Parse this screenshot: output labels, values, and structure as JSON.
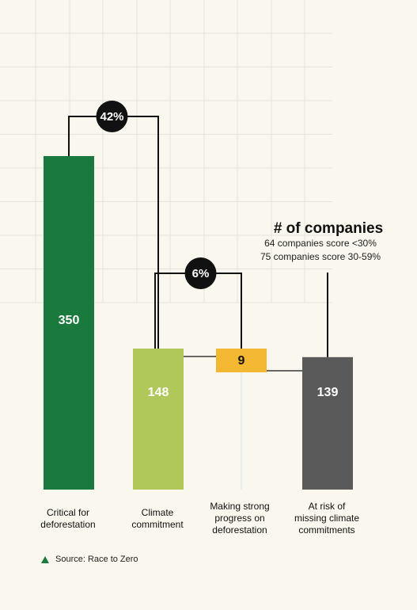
{
  "chart_data": {
    "type": "bar",
    "categories": [
      "Critical for\ndeforestation",
      "Climate\ncommitment",
      "Making strong\nprogress on\ndeforestation",
      "At risk of\nmissing climate\ncommitments"
    ],
    "values": [
      350,
      148,
      9,
      139
    ],
    "labels": [
      "350",
      "148",
      "9",
      "139"
    ],
    "colors": [
      "#1a7a3e",
      "#b0c85a",
      "#f4b731",
      "#5a5a5a"
    ],
    "connectors": [
      {
        "from": 0,
        "to": 1,
        "label": "42%"
      },
      {
        "from": 1,
        "to": 2,
        "label": "6%"
      }
    ],
    "ylim": [
      0,
      350
    ],
    "grid": true
  },
  "legend": {
    "title": "# of companies",
    "line1": "64 companies score <30%",
    "line2": "75 companies score 30-59%"
  },
  "source": "Source: Race to Zero",
  "colors": {
    "background": "#faf7ee",
    "grid": "#e6e3d9",
    "connector": "#111111"
  }
}
